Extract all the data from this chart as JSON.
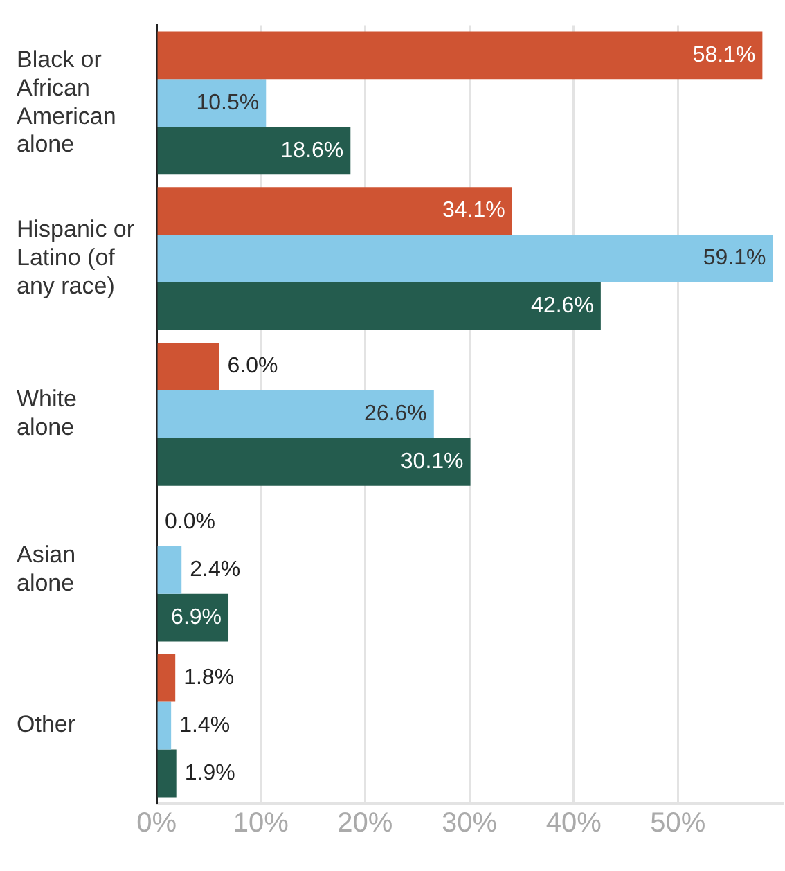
{
  "chart_data": {
    "type": "bar",
    "orientation": "horizontal",
    "categories": [
      "Black or African American alone",
      "Hispanic or Latino (of any race)",
      "White alone",
      "Asian alone",
      "Other"
    ],
    "series": [
      {
        "color": "#cf5433",
        "values": [
          58.1,
          34.1,
          6.0,
          0.0,
          1.8
        ]
      },
      {
        "color": "#86c9e8",
        "values": [
          10.5,
          59.1,
          26.6,
          2.4,
          1.4
        ]
      },
      {
        "color": "#245c4e",
        "values": [
          18.6,
          42.6,
          30.1,
          6.9,
          1.9
        ]
      }
    ],
    "value_labels": [
      [
        "58.1%",
        "34.1%",
        "6.0%",
        "0.0%",
        "1.8%"
      ],
      [
        "10.5%",
        "59.1%",
        "26.6%",
        "2.4%",
        "1.4%"
      ],
      [
        "18.6%",
        "42.6%",
        "30.1%",
        "6.9%",
        "1.9%"
      ]
    ],
    "xlim": [
      0,
      60
    ],
    "xticks": [
      {
        "value": 0,
        "label": "0%"
      },
      {
        "value": 10,
        "label": "10%"
      },
      {
        "value": 20,
        "label": "20%"
      },
      {
        "value": 30,
        "label": "30%"
      },
      {
        "value": 40,
        "label": "40%"
      },
      {
        "value": 50,
        "label": "50%"
      }
    ],
    "grid": "x",
    "legend": false
  }
}
